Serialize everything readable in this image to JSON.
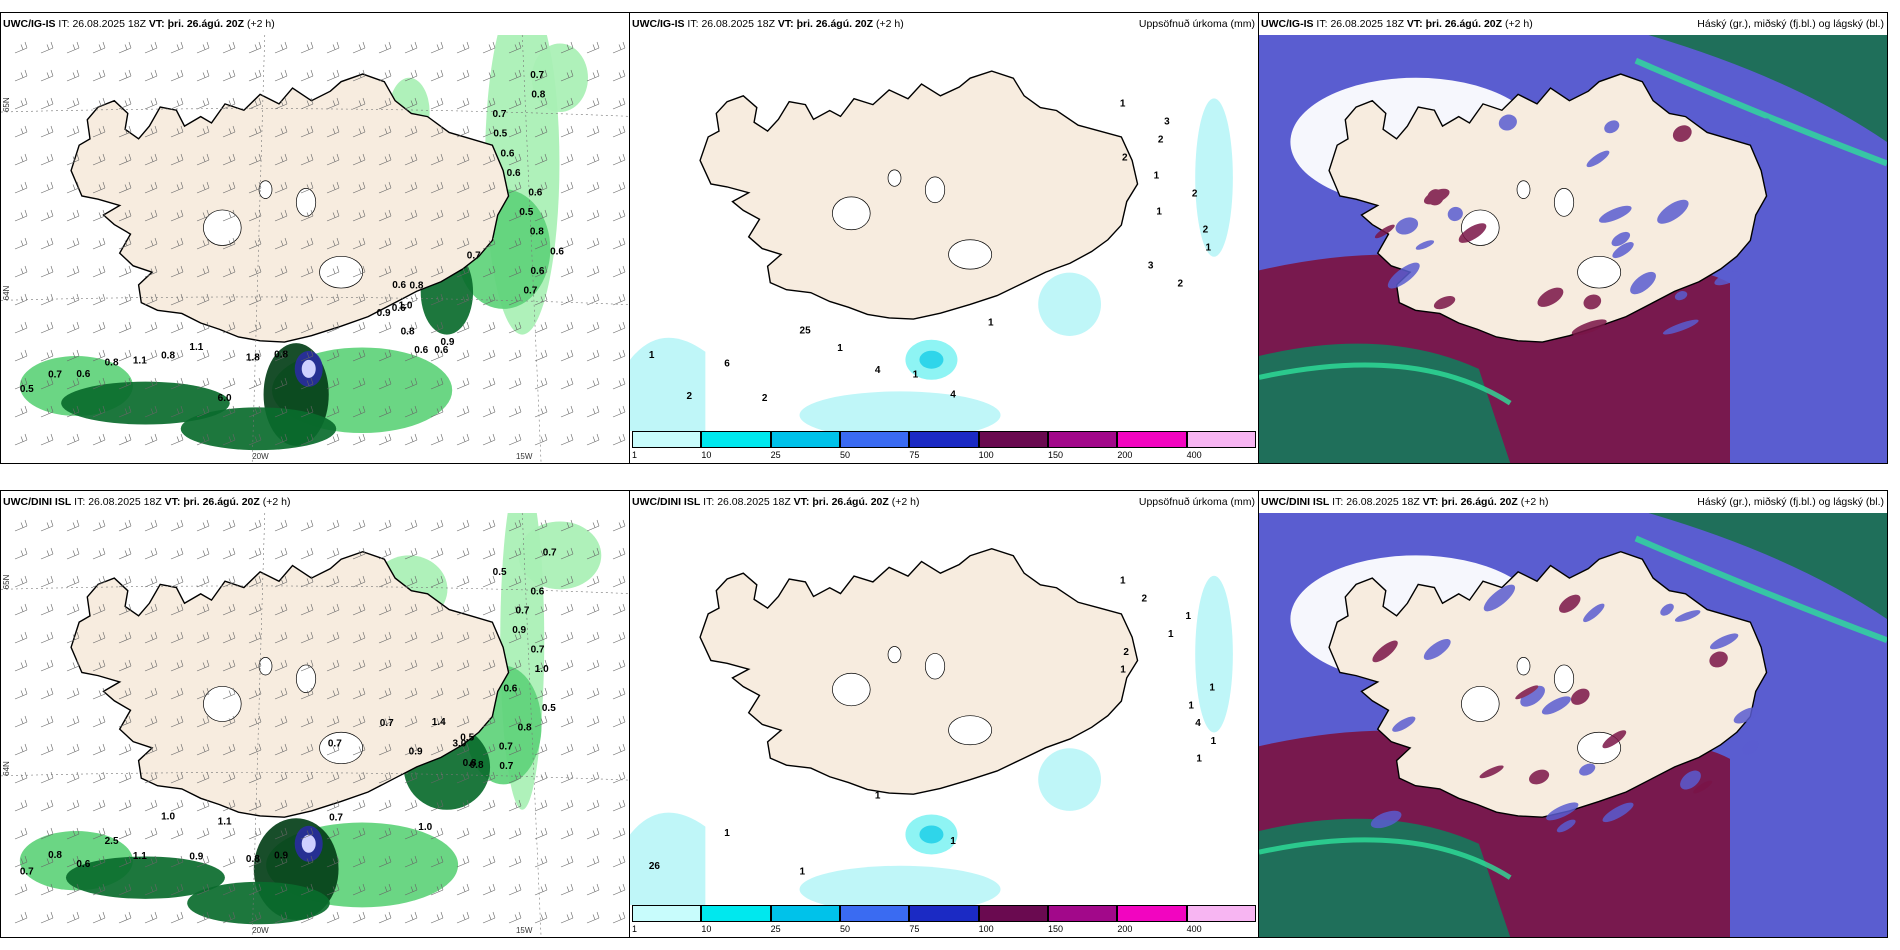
{
  "colors": {
    "land": "#f7ecdf",
    "sea": "#ffffff",
    "precip_light": "#a8f0b4",
    "precip_mid": "#5ed37a",
    "precip_dark": "#0a6b2c",
    "precip_vdark": "#043f18",
    "accum_light": "#bff6f8",
    "cloud_high": "#5a5dd0",
    "cloud_mid": "#7a1547",
    "cloud_low": "#1f6f5a",
    "cloud_low_bright": "#2ee09a"
  },
  "axis": {
    "lon_20": "20W",
    "lon_15": "15W",
    "lat_65": "65N",
    "lat_64": "64N"
  },
  "colorbar": {
    "ticks": [
      "1",
      "10",
      "25",
      "50",
      "75",
      "100",
      "150",
      "200",
      "400"
    ],
    "colors": [
      "#c8fcfc",
      "#00e8ee",
      "#00c2ea",
      "#3a6bf2",
      "#1b2ac4",
      "#6a0a50",
      "#a2088a",
      "#f205c0",
      "#f7b5f2"
    ]
  },
  "rows": [
    {
      "model": "UWC/IG-IS",
      "it_prefix": "IT:",
      "it_value": "26.08.2025 18Z",
      "vt_prefix": "VT:",
      "vt_value": "þri. 26.ágú. 20Z",
      "lead": "(+2 h)",
      "precip_title": "Uppsöfnuð úrkoma (mm)",
      "cloud_title": "Háský (gr.), miðský (fj.bl.) og lágský (bl.)",
      "rain_labels": [
        "0.7",
        "0.8",
        "0.7",
        "0.5",
        "0.6",
        "0.6",
        "0.6",
        "0.5",
        "0.8",
        "0.6",
        "0.6",
        "0.7",
        "0.9",
        "0.7",
        "0.6",
        "0.8",
        "0.6",
        "0.8",
        "0.6",
        "0.9",
        "1.0",
        "0.6",
        "0.5",
        "0.7",
        "0.6",
        "0.8",
        "1.1",
        "0.8",
        "1.1",
        "6.0",
        "1.8",
        "0.8"
      ],
      "accum_labels": [
        "1",
        "3",
        "2",
        "2",
        "1",
        "2",
        "1",
        "2",
        "1",
        "3",
        "2",
        "1",
        "2",
        "6",
        "2",
        "25",
        "1",
        "4",
        "1",
        "4",
        "1"
      ]
    },
    {
      "model": "UWC/DINI ISL",
      "it_prefix": "IT:",
      "it_value": "26.08.2025 18Z",
      "vt_prefix": "VT:",
      "vt_value": "þri. 26.ágú. 20Z",
      "lead": "(+2 h)",
      "precip_title": "Uppsöfnuð úrkoma (mm)",
      "cloud_title": "Háský (gr.), miðský (fj.bl.) og lágský (bl.)",
      "rain_labels": [
        "0.7",
        "0.5",
        "0.6",
        "0.7",
        "0.9",
        "0.7",
        "1.0",
        "0.6",
        "0.5",
        "0.8",
        "0.7",
        "0.7",
        "0.5",
        "0.7",
        "0.7",
        "0.8",
        "0.7",
        "0.8",
        "3.0",
        "1.4",
        "1.0",
        "0.9",
        "0.7",
        "0.8",
        "0.6",
        "2.5",
        "1.1",
        "1.0",
        "0.9",
        "1.1",
        "0.8",
        "0.9"
      ],
      "accum_labels": [
        "1",
        "2",
        "1",
        "1",
        "2",
        "1",
        "1",
        "1",
        "4",
        "1",
        "1",
        "26",
        "1",
        "1",
        "1",
        "1"
      ]
    }
  ]
}
